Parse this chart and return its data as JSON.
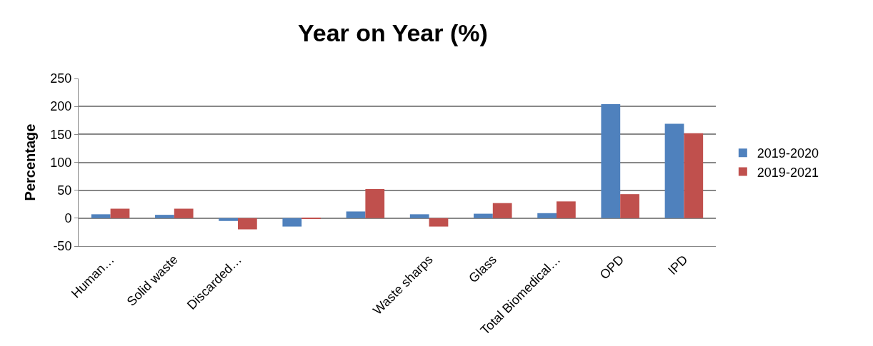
{
  "chart_data": {
    "type": "bar",
    "title": "Year on Year (%)",
    "ylabel": "Percentage",
    "categories": [
      "Human…",
      "Solid waste",
      "Discarded…",
      null,
      null,
      "Waste sharps",
      "Glass",
      "Total Biomedical…",
      "OPD",
      "IPD"
    ],
    "series": [
      {
        "name": "2019-2020",
        "color": "#4f81bd",
        "values": [
          7,
          6,
          -5,
          -15,
          12,
          7,
          8,
          9,
          204,
          169
        ]
      },
      {
        "name": "2019-2021",
        "color": "#c0504d",
        "values": [
          17,
          17,
          -20,
          -1,
          52,
          -15,
          27,
          30,
          43,
          152
        ]
      }
    ],
    "ylim": [
      -50,
      250
    ],
    "yticks": [
      -50,
      0,
      50,
      100,
      150,
      200,
      250
    ],
    "grid": "y",
    "legend": "right"
  }
}
